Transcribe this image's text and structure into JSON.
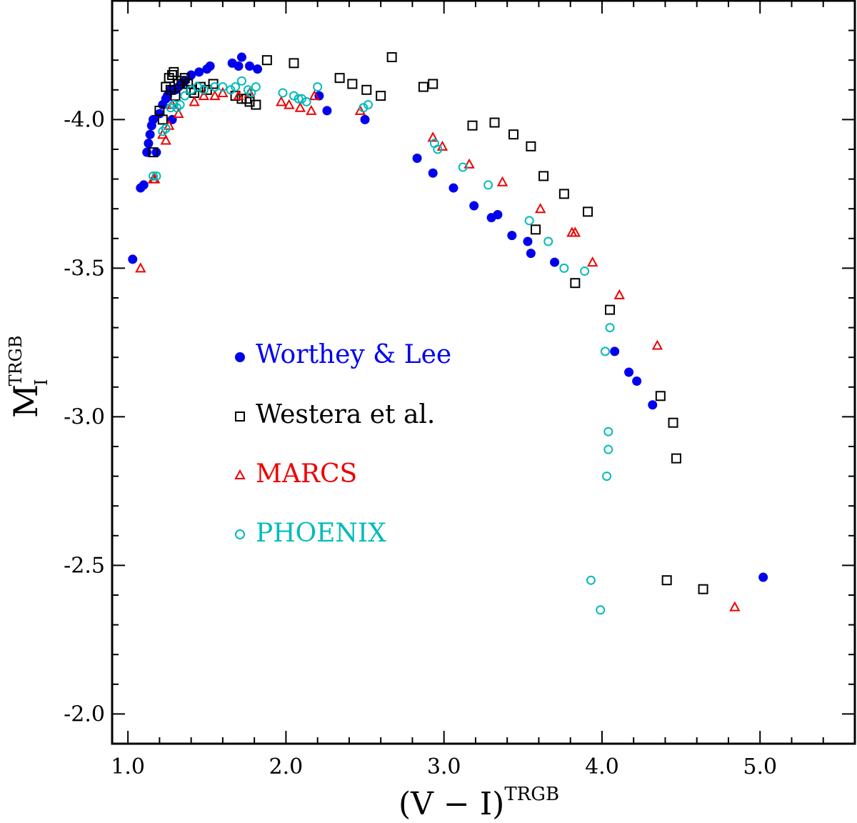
{
  "chart_data": {
    "type": "scatter",
    "xlabel": {
      "main": "(V − I)",
      "sup": "TRGB"
    },
    "ylabel": {
      "main": "M",
      "sub": "I",
      "sup": "TRGB"
    },
    "xlim": [
      0.9,
      5.6
    ],
    "ylim": [
      -4.4,
      -1.9
    ],
    "y_inverted": true,
    "xticks": [
      1.0,
      2.0,
      3.0,
      4.0,
      5.0
    ],
    "xtick_labels": [
      "1.0",
      "2.0",
      "3.0",
      "4.0",
      "5.0"
    ],
    "yticks": [
      -4.0,
      -3.5,
      -3.0,
      -2.5,
      -2.0
    ],
    "ytick_labels": [
      "-4.0",
      "-3.5",
      "-3.0",
      "-2.5",
      "-2.0"
    ],
    "legend_placement": "left-middle",
    "series": [
      {
        "name": "Worthey & Lee",
        "marker": "filled-circle",
        "color": "#0000ee",
        "points": [
          [
            1.03,
            -3.53
          ],
          [
            1.08,
            -3.77
          ],
          [
            1.1,
            -3.78
          ],
          [
            1.12,
            -3.89
          ],
          [
            1.13,
            -3.92
          ],
          [
            1.14,
            -3.95
          ],
          [
            1.15,
            -3.98
          ],
          [
            1.16,
            -4.0
          ],
          [
            1.18,
            -3.89
          ],
          [
            1.2,
            -4.02
          ],
          [
            1.22,
            -4.05
          ],
          [
            1.24,
            -4.07
          ],
          [
            1.25,
            -4.08
          ],
          [
            1.27,
            -4.1
          ],
          [
            1.28,
            -4.0
          ],
          [
            1.3,
            -4.1
          ],
          [
            1.32,
            -4.11
          ],
          [
            1.34,
            -4.12
          ],
          [
            1.36,
            -4.13
          ],
          [
            1.4,
            -4.15
          ],
          [
            1.45,
            -4.16
          ],
          [
            1.5,
            -4.17
          ],
          [
            1.52,
            -4.18
          ],
          [
            1.66,
            -4.19
          ],
          [
            1.7,
            -4.18
          ],
          [
            1.72,
            -4.21
          ],
          [
            1.77,
            -4.18
          ],
          [
            1.82,
            -4.17
          ],
          [
            2.21,
            -4.08
          ],
          [
            2.26,
            -4.03
          ],
          [
            2.5,
            -4.0
          ],
          [
            2.83,
            -3.87
          ],
          [
            2.93,
            -3.82
          ],
          [
            3.06,
            -3.77
          ],
          [
            3.19,
            -3.71
          ],
          [
            3.3,
            -3.67
          ],
          [
            3.34,
            -3.68
          ],
          [
            3.43,
            -3.61
          ],
          [
            3.53,
            -3.59
          ],
          [
            3.55,
            -3.55
          ],
          [
            3.7,
            -3.52
          ],
          [
            4.08,
            -3.22
          ],
          [
            4.17,
            -3.15
          ],
          [
            4.22,
            -3.12
          ],
          [
            4.32,
            -3.04
          ],
          [
            5.02,
            -2.46
          ]
        ]
      },
      {
        "name": "Westera et al.",
        "marker": "open-square",
        "color": "#000000",
        "points": [
          [
            1.16,
            -3.89
          ],
          [
            1.2,
            -4.03
          ],
          [
            1.22,
            -4.0
          ],
          [
            1.24,
            -4.11
          ],
          [
            1.26,
            -4.14
          ],
          [
            1.27,
            -4.1
          ],
          [
            1.28,
            -4.15
          ],
          [
            1.29,
            -4.16
          ],
          [
            1.3,
            -4.08
          ],
          [
            1.32,
            -4.12
          ],
          [
            1.34,
            -4.13
          ],
          [
            1.36,
            -4.14
          ],
          [
            1.38,
            -4.12
          ],
          [
            1.4,
            -4.1
          ],
          [
            1.42,
            -4.09
          ],
          [
            1.46,
            -4.11
          ],
          [
            1.5,
            -4.1
          ],
          [
            1.54,
            -4.12
          ],
          [
            1.68,
            -4.08
          ],
          [
            1.72,
            -4.07
          ],
          [
            1.75,
            -4.07
          ],
          [
            1.77,
            -4.06
          ],
          [
            1.81,
            -4.05
          ],
          [
            1.88,
            -4.2
          ],
          [
            2.05,
            -4.19
          ],
          [
            2.34,
            -4.14
          ],
          [
            2.42,
            -4.12
          ],
          [
            2.51,
            -4.1
          ],
          [
            2.6,
            -4.08
          ],
          [
            2.67,
            -4.21
          ],
          [
            2.87,
            -4.11
          ],
          [
            2.93,
            -4.12
          ],
          [
            3.18,
            -3.98
          ],
          [
            3.32,
            -3.99
          ],
          [
            3.44,
            -3.95
          ],
          [
            3.55,
            -3.91
          ],
          [
            3.58,
            -3.63
          ],
          [
            3.63,
            -3.81
          ],
          [
            3.76,
            -3.75
          ],
          [
            3.83,
            -3.45
          ],
          [
            3.91,
            -3.69
          ],
          [
            4.05,
            -3.36
          ],
          [
            4.37,
            -3.07
          ],
          [
            4.45,
            -2.98
          ],
          [
            4.47,
            -2.86
          ],
          [
            4.41,
            -2.45
          ],
          [
            4.64,
            -2.42
          ]
        ]
      },
      {
        "name": "MARCS",
        "marker": "open-triangle",
        "color": "#ee0000",
        "points": [
          [
            1.08,
            -3.5
          ],
          [
            1.16,
            -3.8
          ],
          [
            1.17,
            -3.8
          ],
          [
            1.22,
            -3.95
          ],
          [
            1.24,
            -3.93
          ],
          [
            1.26,
            -3.98
          ],
          [
            1.28,
            -4.05
          ],
          [
            1.32,
            -4.02
          ],
          [
            1.42,
            -4.06
          ],
          [
            1.48,
            -4.08
          ],
          [
            1.55,
            -4.08
          ],
          [
            1.6,
            -4.09
          ],
          [
            1.7,
            -4.08
          ],
          [
            1.77,
            -4.09
          ],
          [
            1.97,
            -4.06
          ],
          [
            2.02,
            -4.05
          ],
          [
            2.09,
            -4.04
          ],
          [
            2.16,
            -4.03
          ],
          [
            2.18,
            -4.08
          ],
          [
            2.47,
            -4.03
          ],
          [
            2.93,
            -3.94
          ],
          [
            2.99,
            -3.91
          ],
          [
            3.16,
            -3.85
          ],
          [
            3.37,
            -3.79
          ],
          [
            3.61,
            -3.7
          ],
          [
            3.81,
            -3.62
          ],
          [
            3.83,
            -3.62
          ],
          [
            3.94,
            -3.52
          ],
          [
            4.11,
            -3.41
          ],
          [
            4.35,
            -3.24
          ],
          [
            4.84,
            -2.36
          ]
        ]
      },
      {
        "name": "PHOENIX",
        "marker": "open-circle",
        "color": "#00bbbb",
        "points": [
          [
            1.16,
            -3.81
          ],
          [
            1.18,
            -3.81
          ],
          [
            1.22,
            -3.96
          ],
          [
            1.24,
            -3.97
          ],
          [
            1.27,
            -4.04
          ],
          [
            1.29,
            -4.05
          ],
          [
            1.31,
            -4.04
          ],
          [
            1.33,
            -4.05
          ],
          [
            1.36,
            -4.08
          ],
          [
            1.4,
            -4.1
          ],
          [
            1.44,
            -4.11
          ],
          [
            1.48,
            -4.1
          ],
          [
            1.55,
            -4.11
          ],
          [
            1.6,
            -4.11
          ],
          [
            1.65,
            -4.1
          ],
          [
            1.68,
            -4.11
          ],
          [
            1.72,
            -4.13
          ],
          [
            1.76,
            -4.1
          ],
          [
            1.78,
            -4.09
          ],
          [
            1.81,
            -4.11
          ],
          [
            1.98,
            -4.09
          ],
          [
            2.05,
            -4.08
          ],
          [
            2.08,
            -4.07
          ],
          [
            2.1,
            -4.07
          ],
          [
            2.13,
            -4.06
          ],
          [
            2.2,
            -4.11
          ],
          [
            2.49,
            -4.04
          ],
          [
            2.52,
            -4.05
          ],
          [
            2.94,
            -3.92
          ],
          [
            2.96,
            -3.9
          ],
          [
            3.12,
            -3.84
          ],
          [
            3.28,
            -3.78
          ],
          [
            3.54,
            -3.66
          ],
          [
            3.66,
            -3.59
          ],
          [
            3.76,
            -3.5
          ],
          [
            3.89,
            -3.49
          ],
          [
            4.02,
            -3.22
          ],
          [
            4.05,
            -3.3
          ],
          [
            4.04,
            -2.95
          ],
          [
            4.04,
            -2.89
          ],
          [
            4.03,
            -2.8
          ],
          [
            3.93,
            -2.45
          ],
          [
            3.99,
            -2.35
          ]
        ]
      }
    ]
  }
}
